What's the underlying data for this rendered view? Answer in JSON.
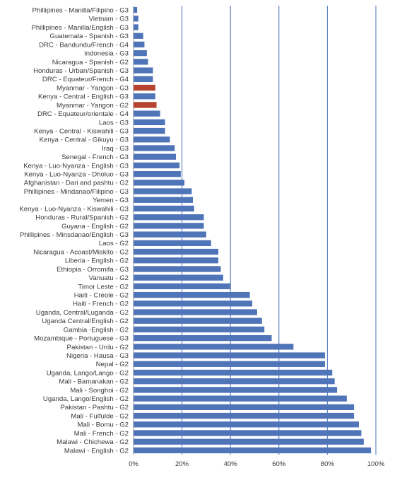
{
  "chart_data": {
    "type": "bar",
    "orientation": "horizontal",
    "title": "",
    "xlabel": "",
    "ylabel": "",
    "xlim": [
      0,
      100
    ],
    "x_ticks": [
      0,
      20,
      40,
      60,
      80,
      100
    ],
    "x_tick_labels": [
      "0%",
      "20%",
      "40%",
      "60%",
      "80%",
      "100%"
    ],
    "grid": "vertical",
    "legend": "none",
    "colors": {
      "default": "#4f74b8",
      "highlight": "#b5432f"
    },
    "categories": [
      "Phillipines - Manilla/Filipino - G3",
      "Vietnam - G3",
      "Phillipines - Manilla/English - G3",
      "Guatemala - Spanish - G3",
      "DRC - Bandundu/French - G4",
      "Indonesia - G3",
      "Nicaragua - Spanish - G2",
      "Honduras - Urban/Spanish - G3",
      "DRC - Equateur/French - G4",
      "Myanmar - Yangon - G3",
      "Kenya - Central - English - G3",
      "Myanmar - Yangon - G2",
      "DRC - Equateur/orientale - G4",
      "Laos - G3",
      "Kenya - Central - Kiswahili - G3",
      "Kenya - Central - Gikuyu - G3",
      "Iraq - G3",
      "Senegal - French - G3",
      "Kenya - Luo-Nyanza - English - G3",
      "Kenya - Luo-Nyanza - Dholuo - G3",
      "Afghanistan - Dari and pashtu - G2",
      "Phillipines - Mindanao/Filipino - G3",
      "Yemen - G3",
      "Kenya - Luo-Nyanza - Kiswahili - G3",
      "Honduras - Rural/Spanish - G2",
      "Guyana - English - G2",
      "Phillipines - Minsdanao/English - G3",
      "Laos - G2",
      "Nicaragua - Acoast/Miskito - G2",
      "Liberia - English - G2",
      "Ethiopia - Orromifa - G3",
      "Vanuatu - G2",
      "Timor Leste - G2",
      "Haiti - Creole - G2",
      "Haiti - French - G2",
      "Uganda, Central/Luganda - G2",
      "Uganda Central/English - G2",
      "Gambia -English - G2",
      "Mozambique - Portuguese - G3",
      "Pakistan - Urdu - G2",
      "Nigeria - Hausa - G3",
      "Nepal - G2",
      "Uganda, Lango/Lango - G2",
      "Mali - Bamanakan - G2",
      "Mali - Songhoi - G2",
      "Uganda, Lango/English - G2",
      "Pakistan - Pashtu - G2",
      "Mali - Fulfulde - G2",
      "Mali - Bomu - G2",
      "Mali - French - G2",
      "Malawi - Chichewa - G2",
      "Malawi - English - G2"
    ],
    "values": [
      1.5,
      2,
      2,
      4,
      4.5,
      5.5,
      6,
      8,
      8,
      9,
      9,
      9.5,
      11,
      13,
      13,
      15,
      17,
      17.5,
      19,
      19.5,
      21,
      24,
      24.5,
      25,
      29,
      29,
      30,
      32,
      35,
      35,
      36,
      37,
      40,
      48,
      49,
      51,
      53,
      54,
      57,
      66,
      79,
      79,
      82,
      83,
      84,
      88,
      91,
      91,
      93,
      94,
      95,
      98
    ],
    "highlighted": [
      "Myanmar - Yangon - G3",
      "Myanmar - Yangon - G2"
    ]
  }
}
